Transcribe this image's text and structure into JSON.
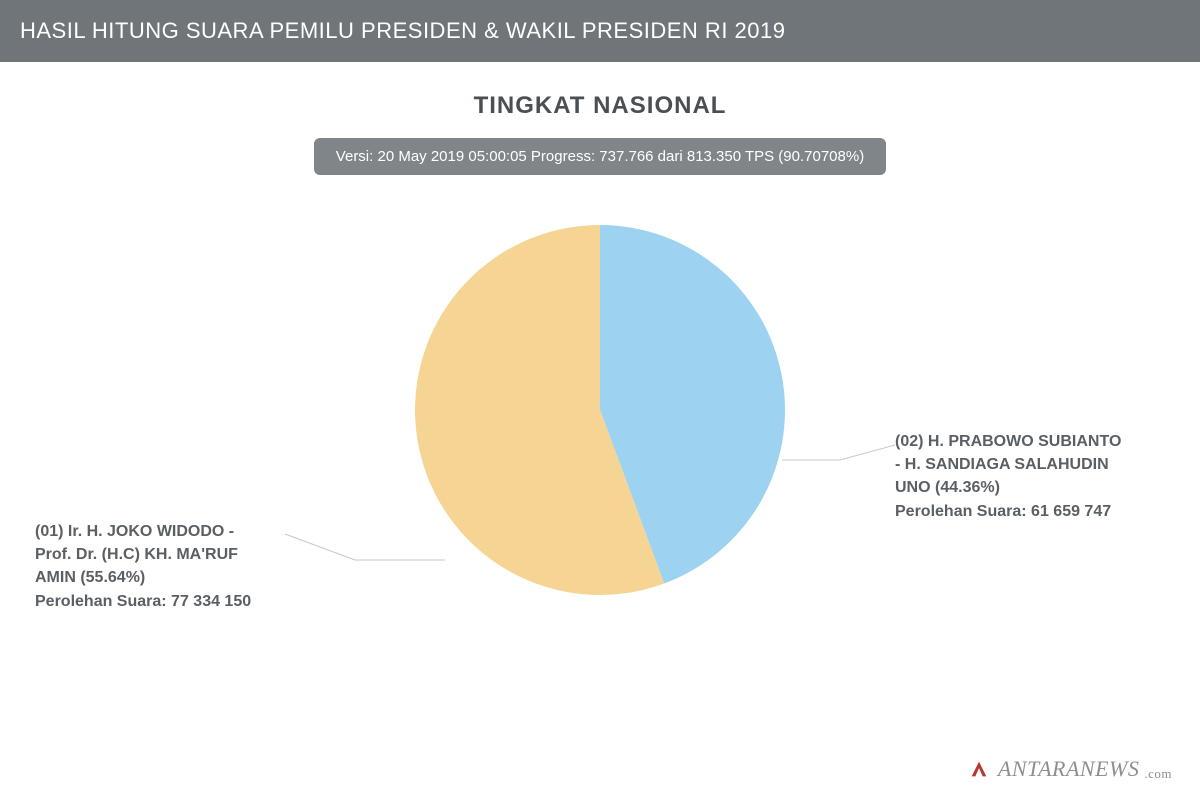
{
  "header": {
    "title": "HASIL HITUNG SUARA PEMILU PRESIDEN & WAKIL PRESIDEN RI 2019"
  },
  "subtitle": "TINGKAT NASIONAL",
  "progress_text": "Versi: 20 May 2019 05:00:05 Progress: 737.766 dari 813.350 TPS (90.70708%)",
  "chart": {
    "type": "pie",
    "background_color": "#ffffff",
    "radius": 185,
    "start_angle_deg": -90,
    "slices": [
      {
        "id": "02",
        "label_lines": [
          "(02) H. PRABOWO SUBIANTO",
          "- H. SANDIAGA SALAHUDIN",
          "UNO (44.36%)",
          "Perolehan Suara: 61 659 747"
        ],
        "percent": 44.36,
        "votes": 61659747,
        "color": "#9dd3f0"
      },
      {
        "id": "01",
        "label_lines": [
          "(01) Ir. H. JOKO WIDODO -",
          "Prof. Dr. (H.C) KH. MA'RUF",
          "AMIN (55.64%)",
          "Perolehan Suara: 77 334 150"
        ],
        "percent": 55.64,
        "votes": 77334150,
        "color": "#f6d594"
      }
    ],
    "label_fontsize": 16,
    "label_color": "#5a5f64",
    "label_fontweight": 600
  },
  "watermark": {
    "text": "ANTARANEWS",
    "suffix": ".com",
    "logo_color": "#b5392f"
  },
  "colors": {
    "header_bg": "#6f7579",
    "header_text": "#ffffff",
    "pill_bg": "#808589",
    "pill_text": "#ffffff",
    "subtitle_text": "#4a4f54",
    "leader_line": "#c7c7c7"
  }
}
